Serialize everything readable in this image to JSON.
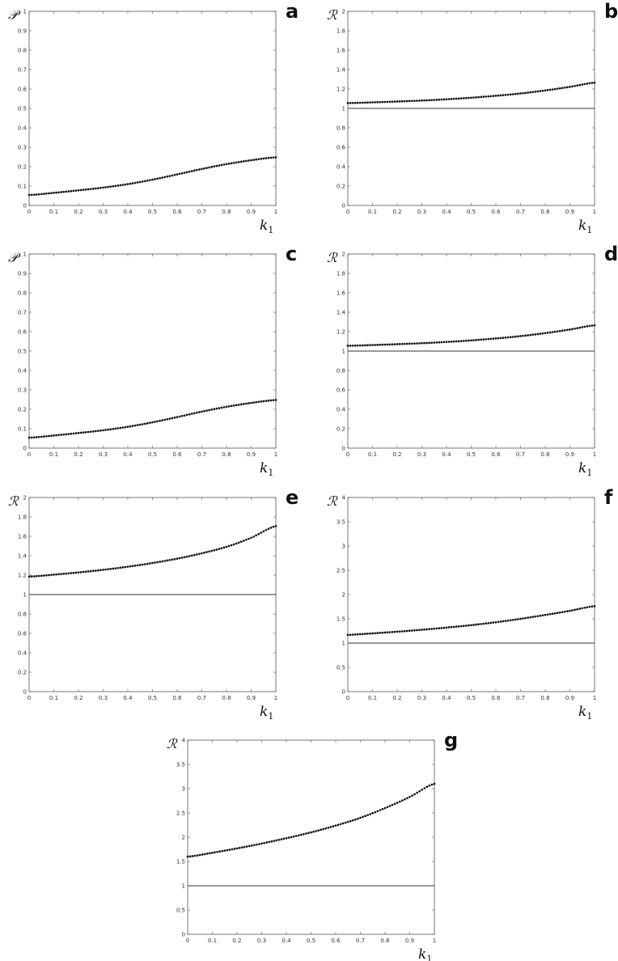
{
  "chart_data": [
    {
      "type": "scatter",
      "panel": "a",
      "ylabel": "𝒫",
      "xlabel": "k1",
      "xlim": [
        0,
        1
      ],
      "ylim": [
        0,
        1
      ],
      "xticks": [
        "0",
        "0.1",
        "0.2",
        "0.3",
        "0.4",
        "0.5",
        "0.6",
        "0.7",
        "0.8",
        "0.9",
        "1"
      ],
      "yticks": [
        "0",
        "0.1",
        "0.2",
        "0.3",
        "0.4",
        "0.5",
        "0.6",
        "0.7",
        "0.8",
        "0.9",
        "1"
      ],
      "series": [
        {
          "x": [
            0,
            0.1,
            0.2,
            0.3,
            0.4,
            0.5,
            0.6,
            0.7,
            0.8,
            0.9,
            1
          ],
          "y": [
            0.054,
            0.065,
            0.078,
            0.092,
            0.11,
            0.133,
            0.16,
            0.188,
            0.213,
            0.233,
            0.248
          ]
        }
      ],
      "reference_y": null
    },
    {
      "type": "scatter",
      "panel": "b",
      "ylabel": "ℛ",
      "xlabel": "k1",
      "xlim": [
        0,
        1
      ],
      "ylim": [
        0,
        2
      ],
      "xticks": [
        "0",
        "0.1",
        "0.2",
        "0.3",
        "0.4",
        "0.5",
        "0.6",
        "0.7",
        "0.8",
        "0.9",
        "1"
      ],
      "yticks": [
        "0",
        "0.2",
        "0.4",
        "0.6",
        "0.8",
        "1",
        "1.2",
        "1.4",
        "1.6",
        "1.8",
        "2"
      ],
      "series": [
        {
          "x": [
            0,
            0.1,
            0.2,
            0.3,
            0.4,
            0.5,
            0.6,
            0.7,
            0.8,
            0.9,
            1
          ],
          "y": [
            1.055,
            1.062,
            1.071,
            1.081,
            1.094,
            1.11,
            1.13,
            1.154,
            1.185,
            1.222,
            1.265
          ]
        }
      ],
      "reference_y": 1
    },
    {
      "type": "scatter",
      "panel": "c",
      "ylabel": "𝒫",
      "xlabel": "k1",
      "xlim": [
        0,
        1
      ],
      "ylim": [
        0,
        1
      ],
      "xticks": [
        "0",
        "0.1",
        "0.2",
        "0.3",
        "0.4",
        "0.5",
        "0.6",
        "0.7",
        "0.8",
        "0.9",
        "1"
      ],
      "yticks": [
        "0",
        "0.1",
        "0.2",
        "0.3",
        "0.4",
        "0.5",
        "0.6",
        "0.7",
        "0.8",
        "0.9",
        "1"
      ],
      "series": [
        {
          "x": [
            0,
            0.1,
            0.2,
            0.3,
            0.4,
            0.5,
            0.6,
            0.7,
            0.8,
            0.9,
            1
          ],
          "y": [
            0.054,
            0.065,
            0.078,
            0.092,
            0.11,
            0.133,
            0.16,
            0.188,
            0.213,
            0.233,
            0.248
          ]
        }
      ],
      "reference_y": null
    },
    {
      "type": "scatter",
      "panel": "d",
      "ylabel": "ℛ",
      "xlabel": "k1",
      "xlim": [
        0,
        1
      ],
      "ylim": [
        0,
        2
      ],
      "xticks": [
        "0",
        "0.1",
        "0.2",
        "0.3",
        "0.4",
        "0.5",
        "0.6",
        "0.7",
        "0.8",
        "0.9",
        "1"
      ],
      "yticks": [
        "0",
        "0.2",
        "0.4",
        "0.6",
        "0.8",
        "1",
        "1.2",
        "1.4",
        "1.6",
        "1.8",
        "2"
      ],
      "series": [
        {
          "x": [
            0,
            0.1,
            0.2,
            0.3,
            0.4,
            0.5,
            0.6,
            0.7,
            0.8,
            0.9,
            1
          ],
          "y": [
            1.055,
            1.062,
            1.071,
            1.081,
            1.094,
            1.11,
            1.13,
            1.154,
            1.185,
            1.222,
            1.265
          ]
        }
      ],
      "reference_y": 1
    },
    {
      "type": "scatter",
      "panel": "e",
      "ylabel": "ℛ",
      "xlabel": "k1",
      "xlim": [
        0,
        1
      ],
      "ylim": [
        0,
        2
      ],
      "xticks": [
        "0",
        "0.1",
        "0.2",
        "0.3",
        "0.4",
        "0.5",
        "0.6",
        "0.7",
        "0.8",
        "0.9",
        "1"
      ],
      "yticks": [
        "0",
        "0.2",
        "0.4",
        "0.6",
        "0.8",
        "1",
        "1.2",
        "1.4",
        "1.6",
        "1.8",
        "2"
      ],
      "series": [
        {
          "x": [
            0,
            0.1,
            0.2,
            0.3,
            0.4,
            0.5,
            0.6,
            0.7,
            0.8,
            0.9,
            1
          ],
          "y": [
            1.185,
            1.205,
            1.228,
            1.255,
            1.287,
            1.325,
            1.37,
            1.425,
            1.492,
            1.585,
            1.705
          ]
        }
      ],
      "reference_y": 1
    },
    {
      "type": "scatter",
      "panel": "f",
      "ylabel": "ℛ",
      "xlabel": "k1",
      "xlim": [
        0,
        1
      ],
      "ylim": [
        0,
        4
      ],
      "xticks": [
        "0",
        "0.1",
        "0.2",
        "0.3",
        "0.4",
        "0.5",
        "0.6",
        "0.7",
        "0.8",
        "0.9",
        "1"
      ],
      "yticks": [
        "0",
        "0.5",
        "1",
        "1.5",
        "2",
        "2.5",
        "3",
        "3.5",
        "4"
      ],
      "series": [
        {
          "x": [
            0,
            0.1,
            0.2,
            0.3,
            0.4,
            0.5,
            0.6,
            0.7,
            0.8,
            0.9,
            1
          ],
          "y": [
            1.17,
            1.2,
            1.235,
            1.275,
            1.32,
            1.37,
            1.43,
            1.5,
            1.58,
            1.665,
            1.76
          ]
        }
      ],
      "reference_y": 1
    },
    {
      "type": "scatter",
      "panel": "g",
      "ylabel": "ℛ",
      "xlabel": "k1",
      "xlim": [
        0,
        1
      ],
      "ylim": [
        0,
        4
      ],
      "xticks": [
        "0",
        "0.1",
        "0.2",
        "0.3",
        "0.4",
        "0.5",
        "0.6",
        "0.7",
        "0.8",
        "0.9",
        "1"
      ],
      "yticks": [
        "0",
        "0.5",
        "1",
        "1.5",
        "2",
        "2.5",
        "3",
        "3.5",
        "4"
      ],
      "series": [
        {
          "x": [
            0,
            0.1,
            0.2,
            0.3,
            0.4,
            0.5,
            0.6,
            0.7,
            0.8,
            0.9,
            1
          ],
          "y": [
            1.6,
            1.68,
            1.77,
            1.87,
            1.98,
            2.1,
            2.24,
            2.4,
            2.6,
            2.83,
            3.1
          ]
        }
      ],
      "reference_y": 1
    }
  ]
}
